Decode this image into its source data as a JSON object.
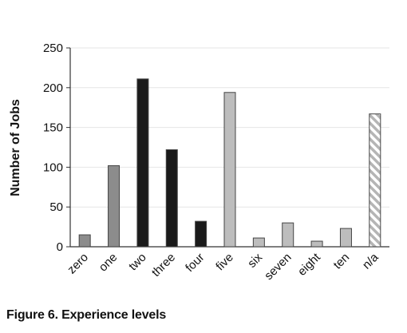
{
  "caption": "Figure 6. Experience levels",
  "chart_data": {
    "type": "bar",
    "title": "",
    "xlabel": "",
    "ylabel": "Number of Jobs",
    "ylim": [
      0,
      250
    ],
    "yticks": [
      0,
      50,
      100,
      150,
      200,
      250
    ],
    "grid": true,
    "legend": "none",
    "categories": [
      "zero",
      "one",
      "two",
      "three",
      "four",
      "five",
      "six",
      "seven",
      "eight",
      "ten",
      "n/a"
    ],
    "values": [
      15,
      102,
      211,
      122,
      32,
      194,
      11,
      30,
      7,
      23,
      167
    ],
    "fills": [
      "#8c8c8c",
      "#8c8c8c",
      "#1a1a1a",
      "#1a1a1a",
      "#1a1a1a",
      "#bdbdbd",
      "#bdbdbd",
      "#bdbdbd",
      "#bdbdbd",
      "#bdbdbd",
      "hatched"
    ]
  }
}
